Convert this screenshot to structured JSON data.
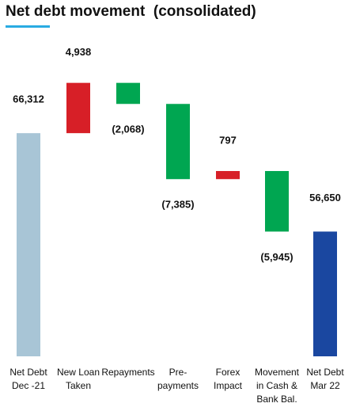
{
  "chart_data": {
    "type": "waterfall",
    "title": "Net debt movement  (consolidated)",
    "categories": [
      "Net Debt\nDec -21",
      "New Loan\nTaken",
      "Repayments",
      "Pre-\npayments",
      "Forex\nImpact",
      "Movement\nin Cash &\nBank Bal.",
      "Net Debt\nMar 22"
    ],
    "values": [
      66312,
      4938,
      -2068,
      -7385,
      797,
      -5945,
      56650
    ],
    "value_labels": [
      "66,312",
      "4,938",
      "(2,068)",
      "(7,385)",
      "797",
      "(5,945)",
      "56,650"
    ],
    "colors": [
      "#a8c5d6",
      "#d71f27",
      "#00a651",
      "#00a651",
      "#d71f27",
      "#00a651",
      "#1a47a0"
    ],
    "ylim": [
      44400,
      72000
    ]
  }
}
